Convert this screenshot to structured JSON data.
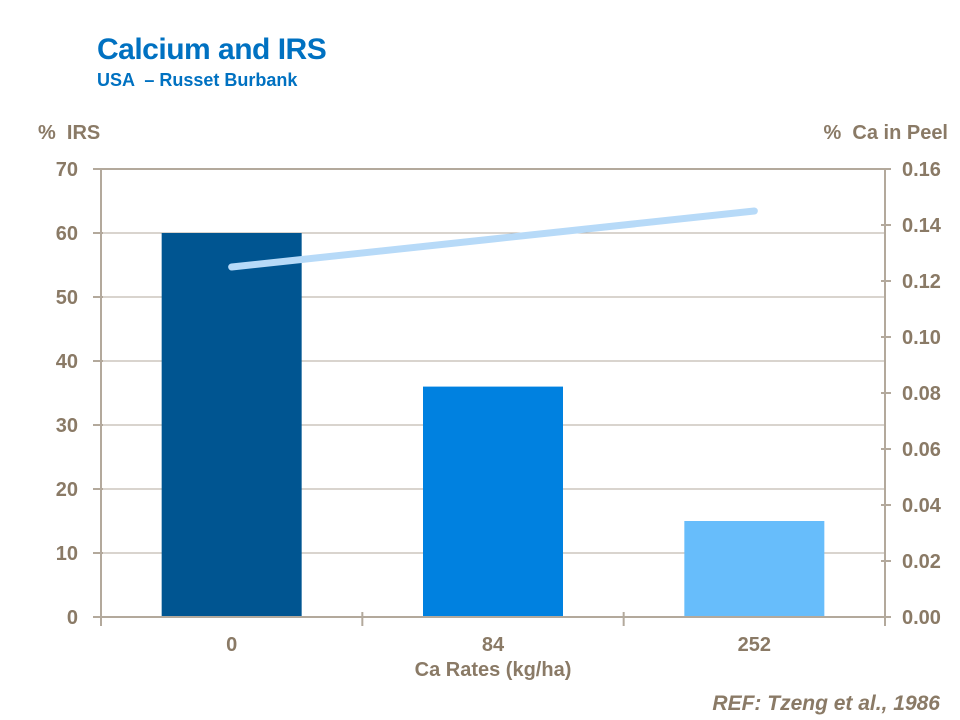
{
  "slide": {
    "title": "Calcium and IRS",
    "subtitle": "USA  – Russet Burbank",
    "reference": "REF: Tzeng et al., 1986"
  },
  "chart_data": {
    "type": "bar",
    "title": "Calcium and IRS — USA Russet Burbank",
    "categories": [
      "0",
      "84",
      "252"
    ],
    "xlabel": "Ca Rates (kg/ha)",
    "left_axis": {
      "label": "%  IRS",
      "min": 0,
      "max": 70,
      "step": 10,
      "tick_labels": [
        "0",
        "10",
        "20",
        "30",
        "40",
        "50",
        "60",
        "70"
      ]
    },
    "right_axis": {
      "label": "%  Ca in Peel",
      "min": 0,
      "max": 0.16,
      "step": 0.02,
      "tick_labels": [
        "0.00",
        "0.02",
        "0.04",
        "0.06",
        "0.08",
        "0.10",
        "0.12",
        "0.14",
        "0.16"
      ]
    },
    "series": [
      {
        "name": "% IRS",
        "type": "bar",
        "axis": "left",
        "values": [
          60,
          36,
          15
        ],
        "bar_colors": [
          "#005591",
          "#0081E0",
          "#67BDFB"
        ]
      },
      {
        "name": "% Ca in Peel",
        "type": "line",
        "axis": "right",
        "values": [
          0.125,
          0.135,
          0.145
        ],
        "color": "#B7DAF8"
      }
    ],
    "grid": "horizontal",
    "legend": "none"
  },
  "style": {
    "title_color": "#0071C1",
    "label_color": "#8A7A66",
    "axis_line_color": "#B3A99C",
    "background": "#FFFFFF",
    "line_color": "#B7DAF8",
    "bar_colors": [
      "#005591",
      "#0081E0",
      "#67BDFB"
    ]
  }
}
